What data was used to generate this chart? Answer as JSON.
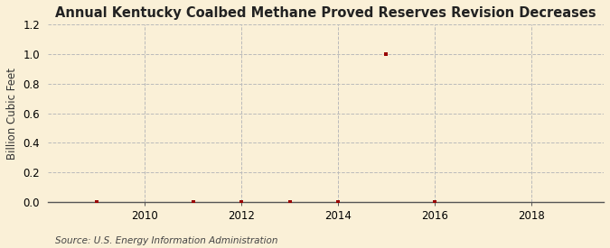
{
  "title": "Annual Kentucky Coalbed Methane Proved Reserves Revision Decreases",
  "ylabel": "Billion Cubic Feet",
  "source": "Source: U.S. Energy Information Administration",
  "background_color": "#FAF0D7",
  "plot_bg_color": "#FAF0D7",
  "xlim": [
    2008.0,
    2019.5
  ],
  "ylim": [
    0.0,
    1.2
  ],
  "yticks": [
    0.0,
    0.2,
    0.4,
    0.6,
    0.8,
    1.0,
    1.2
  ],
  "xticks": [
    2010,
    2012,
    2014,
    2016,
    2018
  ],
  "data_x": [
    2009,
    2011,
    2012,
    2013,
    2014,
    2015,
    2016
  ],
  "data_y": [
    0.003,
    0.003,
    0.003,
    0.003,
    0.003,
    1.003,
    0.003
  ],
  "point_color": "#990000",
  "point_marker": "s",
  "point_size": 12,
  "title_fontsize": 10.5,
  "label_fontsize": 8.5,
  "tick_fontsize": 8.5,
  "source_fontsize": 7.5,
  "grid_color": "#BBBBBB",
  "grid_linestyle": "--",
  "grid_linewidth": 0.7,
  "vgrid_color": "#BBBBBB",
  "vgrid_linestyle": "--",
  "vgrid_linewidth": 0.7
}
